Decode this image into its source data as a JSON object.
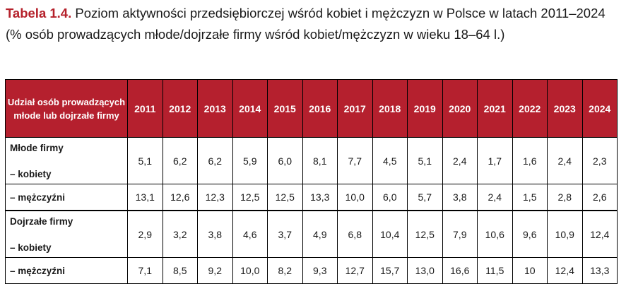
{
  "caption": {
    "label": "Tabela 1.4.",
    "text": "Poziom aktywności przedsiębiorczej wśród kobiet i mężczyzn w Polsce w latach 2011–2024 (% osób prowadzących młode/dojrzałe firmy wśród kobiet/mężczyzn w wieku 18–64 l.)"
  },
  "table": {
    "corner_header": "Udział osób prowadzących młode lub dojrzałe firmy",
    "years": [
      "2011",
      "2012",
      "2013",
      "2014",
      "2015",
      "2016",
      "2017",
      "2018",
      "2019",
      "2020",
      "2021",
      "2022",
      "2023",
      "2024"
    ],
    "groups": [
      {
        "title": "Młode firmy",
        "women_label": "– kobiety",
        "men_label": "– mężczyźni",
        "women": [
          "5,1",
          "6,2",
          "6,2",
          "5,9",
          "6,0",
          "8,1",
          "7,7",
          "4,5",
          "5,1",
          "2,4",
          "1,7",
          "1,6",
          "2,4",
          "2,3"
        ],
        "men": [
          "13,1",
          "12,6",
          "12,3",
          "12,5",
          "12,5",
          "13,3",
          "10,0",
          "6,0",
          "5,7",
          "3,8",
          "2,4",
          "1,5",
          "2,8",
          "2,6"
        ]
      },
      {
        "title": "Dojrzałe firmy",
        "women_label": "– kobiety",
        "men_label": "– mężczyźni",
        "women": [
          "2,9",
          "3,2",
          "3,8",
          "4,6",
          "3,7",
          "4,9",
          "6,8",
          "10,4",
          "12,5",
          "7,9",
          "10,6",
          "9,6",
          "10,9",
          "12,4"
        ],
        "men": [
          "7,1",
          "8,5",
          "9,2",
          "10,0",
          "8,2",
          "9,3",
          "12,7",
          "15,7",
          "13,0",
          "16,6",
          "11,5",
          "10",
          "12,4",
          "13,3"
        ]
      }
    ]
  }
}
